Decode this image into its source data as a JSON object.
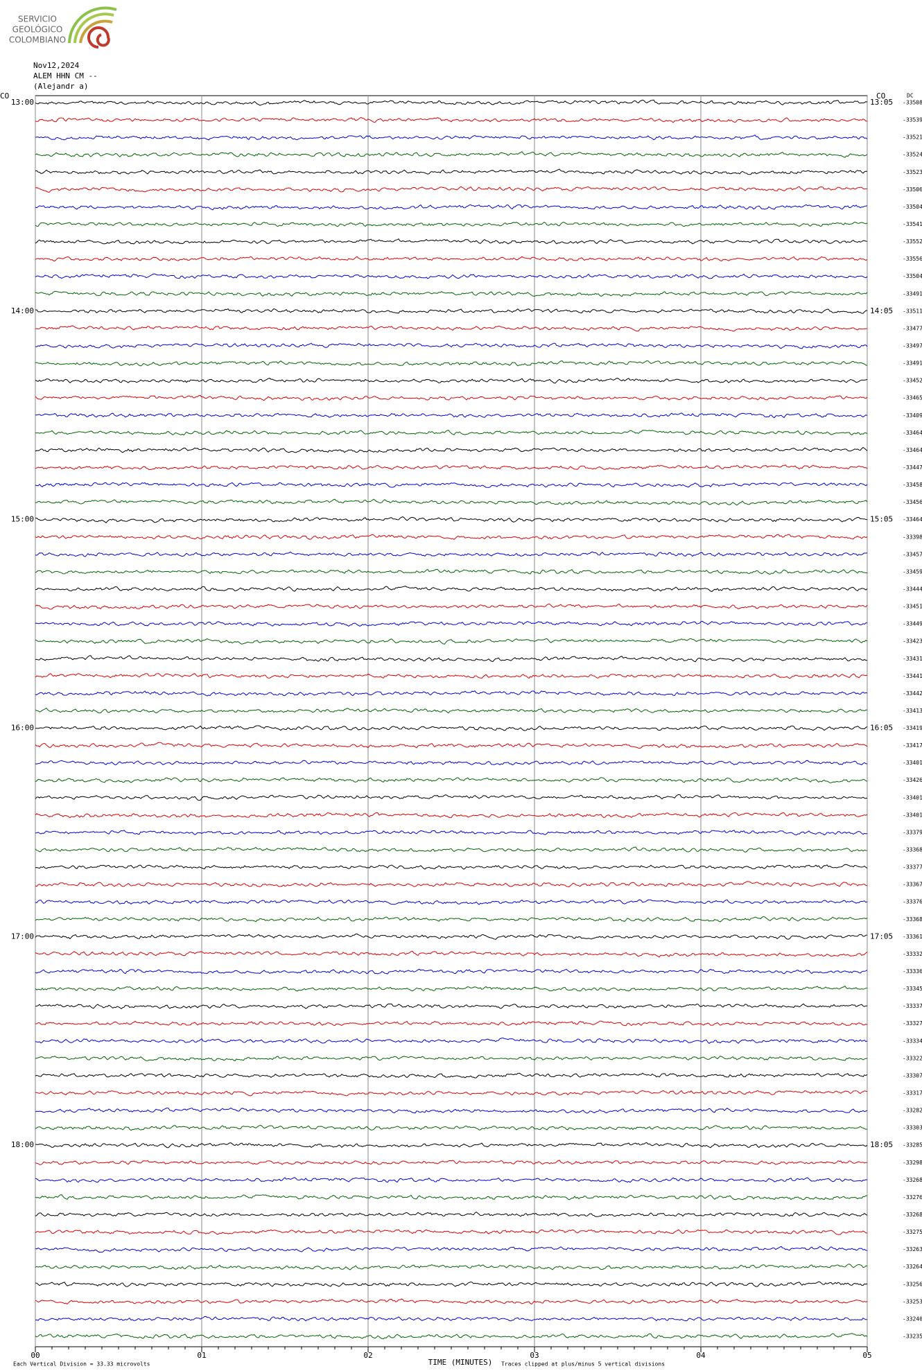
{
  "logo": {
    "lines": [
      "SERVICIO",
      "GEOLÓGICO",
      "COLOMBIANO"
    ]
  },
  "header": {
    "date": "Nov12,2024",
    "station": "ALEM HHN CM --",
    "operator": "(Alejandr  a)",
    "network_left": "CO",
    "network_right": "CO",
    "dc_header": "DC"
  },
  "chart_data": {
    "type": "helicorder",
    "colors": [
      "#000000",
      "#e00000",
      "#0000e0",
      "#006400"
    ],
    "xlim": [
      0,
      5
    ],
    "xticks": [
      {
        "value": 0,
        "label": "00"
      },
      {
        "value": 1,
        "label": "01"
      },
      {
        "value": 2,
        "label": "02"
      },
      {
        "value": 3,
        "label": "03"
      },
      {
        "value": 4,
        "label": "04"
      },
      {
        "value": 5,
        "label": "05"
      }
    ],
    "x_label": "TIME (MINUTES)",
    "scale_note": "Each Vertical Division =   33.33 microvolts",
    "clip_note": "Traces clipped at plus/minus 5 vertical divisions",
    "rows": [
      {
        "left": "13:00",
        "right": "13:05",
        "dc": -33508
      },
      {
        "dc": -33539
      },
      {
        "dc": -33521
      },
      {
        "dc": -33524
      },
      {
        "dc": -33523
      },
      {
        "dc": -33506
      },
      {
        "dc": -33504
      },
      {
        "dc": -33541
      },
      {
        "dc": -33552
      },
      {
        "dc": -33556
      },
      {
        "dc": -33504
      },
      {
        "dc": -33491
      },
      {
        "left": "14:00",
        "right": "14:05",
        "dc": -33511
      },
      {
        "dc": -33477
      },
      {
        "dc": -33497
      },
      {
        "dc": -33491
      },
      {
        "dc": -33452
      },
      {
        "dc": -33465
      },
      {
        "dc": -33409
      },
      {
        "dc": -33464
      },
      {
        "dc": -33464
      },
      {
        "dc": -33447
      },
      {
        "dc": -33458
      },
      {
        "dc": -33456
      },
      {
        "left": "15:00",
        "right": "15:05",
        "dc": -33464
      },
      {
        "dc": -33398
      },
      {
        "dc": -33457
      },
      {
        "dc": -33459
      },
      {
        "dc": -33444
      },
      {
        "dc": -33451
      },
      {
        "dc": -33449
      },
      {
        "dc": -33423
      },
      {
        "dc": -33431
      },
      {
        "dc": -33441
      },
      {
        "dc": -33442
      },
      {
        "dc": -33413
      },
      {
        "left": "16:00",
        "right": "16:05",
        "dc": -33419
      },
      {
        "dc": -33417
      },
      {
        "dc": -33401
      },
      {
        "dc": -33426
      },
      {
        "dc": -33401
      },
      {
        "dc": -33401
      },
      {
        "dc": -33379
      },
      {
        "dc": -33368
      },
      {
        "dc": -33377
      },
      {
        "dc": -33367
      },
      {
        "dc": -33376
      },
      {
        "dc": -33368
      },
      {
        "left": "17:00",
        "right": "17:05",
        "dc": -33361
      },
      {
        "dc": -33332
      },
      {
        "dc": -33336
      },
      {
        "dc": -33345
      },
      {
        "dc": -33337
      },
      {
        "dc": -33327
      },
      {
        "dc": -33334
      },
      {
        "dc": -33322
      },
      {
        "dc": -33307
      },
      {
        "dc": -33317
      },
      {
        "dc": -33282
      },
      {
        "dc": -33303
      },
      {
        "left": "18:00",
        "right": "18:05",
        "dc": -33285
      },
      {
        "dc": -33298
      },
      {
        "dc": -33268
      },
      {
        "dc": -33276
      },
      {
        "dc": -33268
      },
      {
        "dc": -33275
      },
      {
        "dc": -33263
      },
      {
        "dc": -33264
      },
      {
        "dc": -33256
      },
      {
        "dc": -33253
      },
      {
        "dc": -33240
      },
      {
        "dc": -33235
      }
    ]
  }
}
